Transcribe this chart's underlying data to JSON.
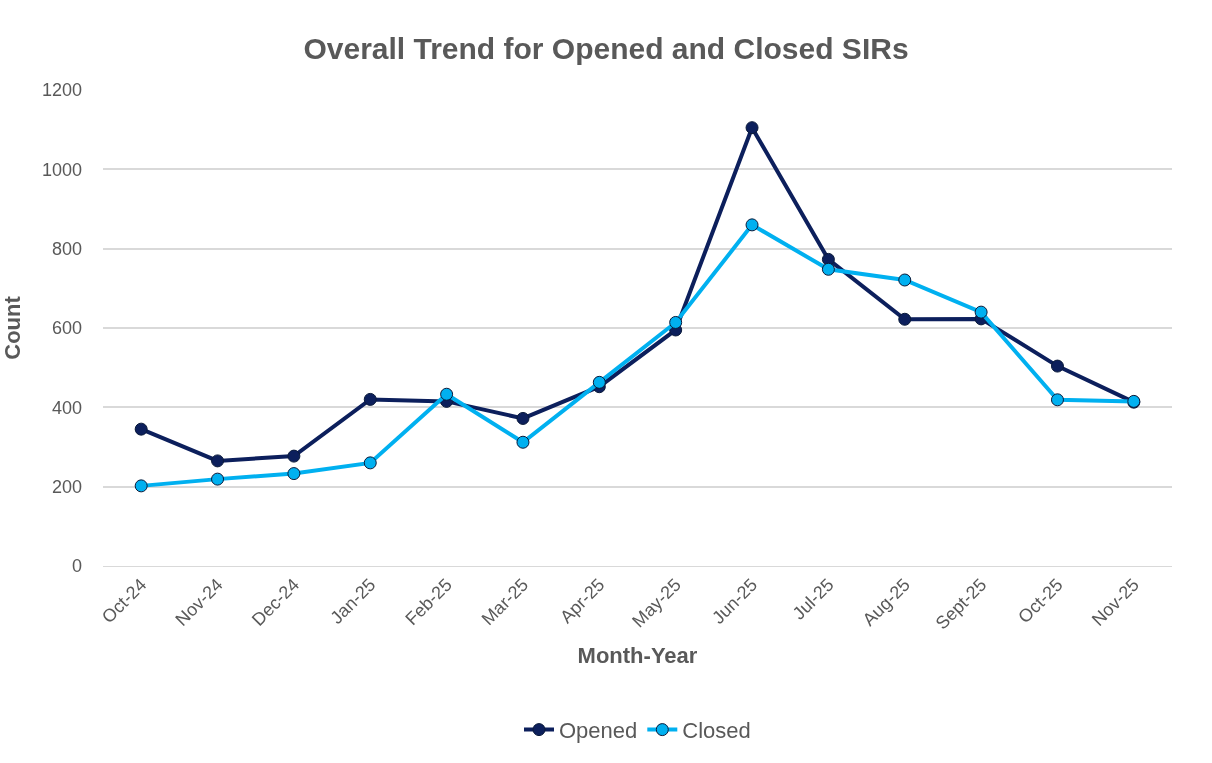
{
  "chart_data": {
    "type": "line",
    "title": "Overall Trend for Opened and Closed SIRs",
    "xlabel": "Month-Year",
    "ylabel": "Count",
    "categories": [
      "Oct-24",
      "Nov-24",
      "Dec-24",
      "Jan-25",
      "Feb-25",
      "Mar-25",
      "Apr-25",
      "May-25",
      "Jun-25",
      "Jul-25",
      "Aug-25",
      "Sept-25",
      "Oct-25",
      "Nov-25"
    ],
    "series": [
      {
        "name": "Opened",
        "color": "#0c1f5c",
        "values": [
          345,
          265,
          277,
          420,
          415,
          372,
          452,
          595,
          1105,
          773,
          622,
          623,
          504,
          413
        ]
      },
      {
        "name": "Closed",
        "color": "#00b0f0",
        "values": [
          202,
          219,
          233,
          260,
          433,
          312,
          463,
          614,
          860,
          748,
          721,
          640,
          419,
          415
        ]
      }
    ],
    "ylim": [
      0,
      1200
    ],
    "yticks": [
      0,
      200,
      400,
      600,
      800,
      1000,
      1200
    ],
    "grid": "y",
    "legend": "bottom",
    "marker": "circle",
    "line_style": "solid"
  }
}
